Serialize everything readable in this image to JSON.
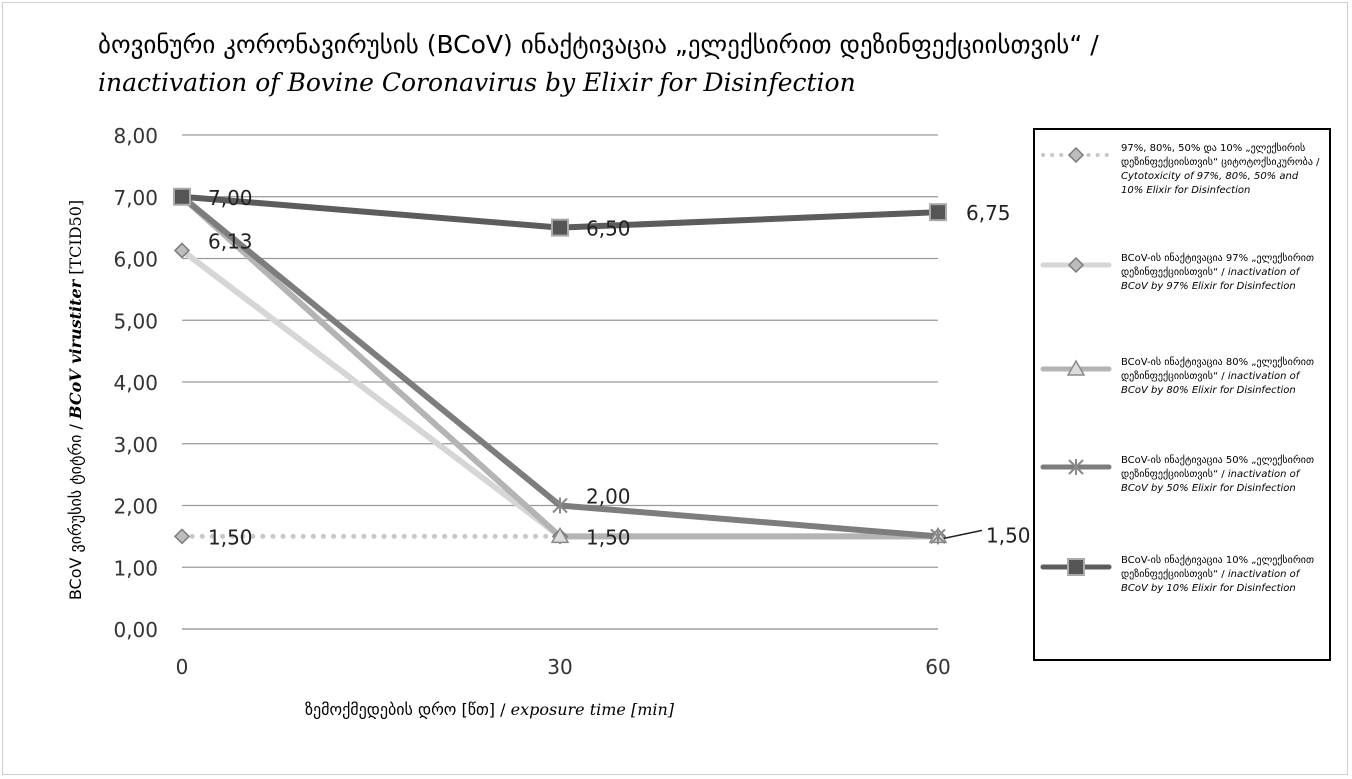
{
  "title_line1": "ბოვინური კორონავირუსის (BCoV) ინაქტივაცია „ელექსირით დეზინფექციისთვის“ /",
  "title_line2": "inactivation of Bovine Coronavirus by Elixir for Disinfection",
  "ylabel_main": "BCoV ვირუსის ტიტრი / ",
  "ylabel_italic": "BCoV virustiter",
  "ylabel_unit": " [TCID50]",
  "xlabel_main": "ზემოქმედების დრო [წთ] / ",
  "xlabel_italic": "exposure time [min]",
  "legend": [
    {
      "ka": "97%, 80%, 50% და 10% „ელექსირის დეზინფექციისთვის“ ციტოტოქსიკურობა /",
      "en": "Cytotoxicity of 97%, 80%, 50% and 10% Elixir for Disinfection"
    },
    {
      "ka": "BCoV-ის ინაქტივაცია 97% „ელექსირით დეზინფექციისთვის“ /",
      "en": "inactivation of BCoV by 97% Elixir for Disinfection"
    },
    {
      "ka": "BCoV-ის ინაქტივაცია 80% „ელექსირით დეზინფექციისთვის“ /",
      "en": "inactivation of BCoV by 80% Elixir for Disinfection"
    },
    {
      "ka": "BCoV-ის ინაქტივაცია 50% „ელექსირით დეზინფექციისთვის“ /",
      "en": "inactivation of BCoV by 50% Elixir for Disinfection"
    },
    {
      "ka": "BCoV-ის ინაქტივაცია 10% „ელექსირით დეზინფექციისთვის“ /",
      "en": "inactivation of BCoV by 10% Elixir for Disinfection"
    }
  ],
  "chart_data": {
    "type": "line",
    "x": [
      0,
      30,
      60
    ],
    "xticks": [
      "0",
      "30",
      "60"
    ],
    "ylim": [
      0,
      8
    ],
    "yticks": [
      "0,00",
      "1,00",
      "2,00",
      "3,00",
      "4,00",
      "5,00",
      "6,00",
      "7,00",
      "8,00"
    ],
    "grid": true,
    "legend_position": "right",
    "series": [
      {
        "name": "Cytotoxicity of 97%, 80%, 50% and 10% Elixir for Disinfection",
        "values": [
          1.5,
          1.5,
          1.5
        ],
        "color": "#c8c8c8",
        "marker": "diamond",
        "dashed": true,
        "labels": [
          "1,50",
          "",
          ""
        ]
      },
      {
        "name": "inactivation of BCoV by 97% Elixir for Disinfection",
        "values": [
          6.13,
          1.5,
          1.5
        ],
        "color": "#d6d6d6",
        "marker": "diamond",
        "dashed": false,
        "labels": [
          "6,13",
          "",
          ""
        ]
      },
      {
        "name": "inactivation of BCoV by 80% Elixir for Disinfection",
        "values": [
          7.0,
          1.5,
          1.5
        ],
        "color": "#b4b4b4",
        "marker": "triangle",
        "dashed": false,
        "labels": [
          "",
          "1,50",
          ""
        ]
      },
      {
        "name": "inactivation of BCoV by 50% Elixir for Disinfection",
        "values": [
          7.0,
          2.0,
          1.5
        ],
        "color": "#7d7d7d",
        "marker": "star",
        "dashed": false,
        "labels": [
          "",
          "2,00",
          "1,50"
        ]
      },
      {
        "name": "inactivation of BCoV by 10% Elixir for Disinfection",
        "values": [
          7.0,
          6.5,
          6.75
        ],
        "color": "#5c5c5c",
        "marker": "square",
        "dashed": false,
        "labels": [
          "7,00",
          "6,50",
          "6,75"
        ]
      }
    ]
  }
}
